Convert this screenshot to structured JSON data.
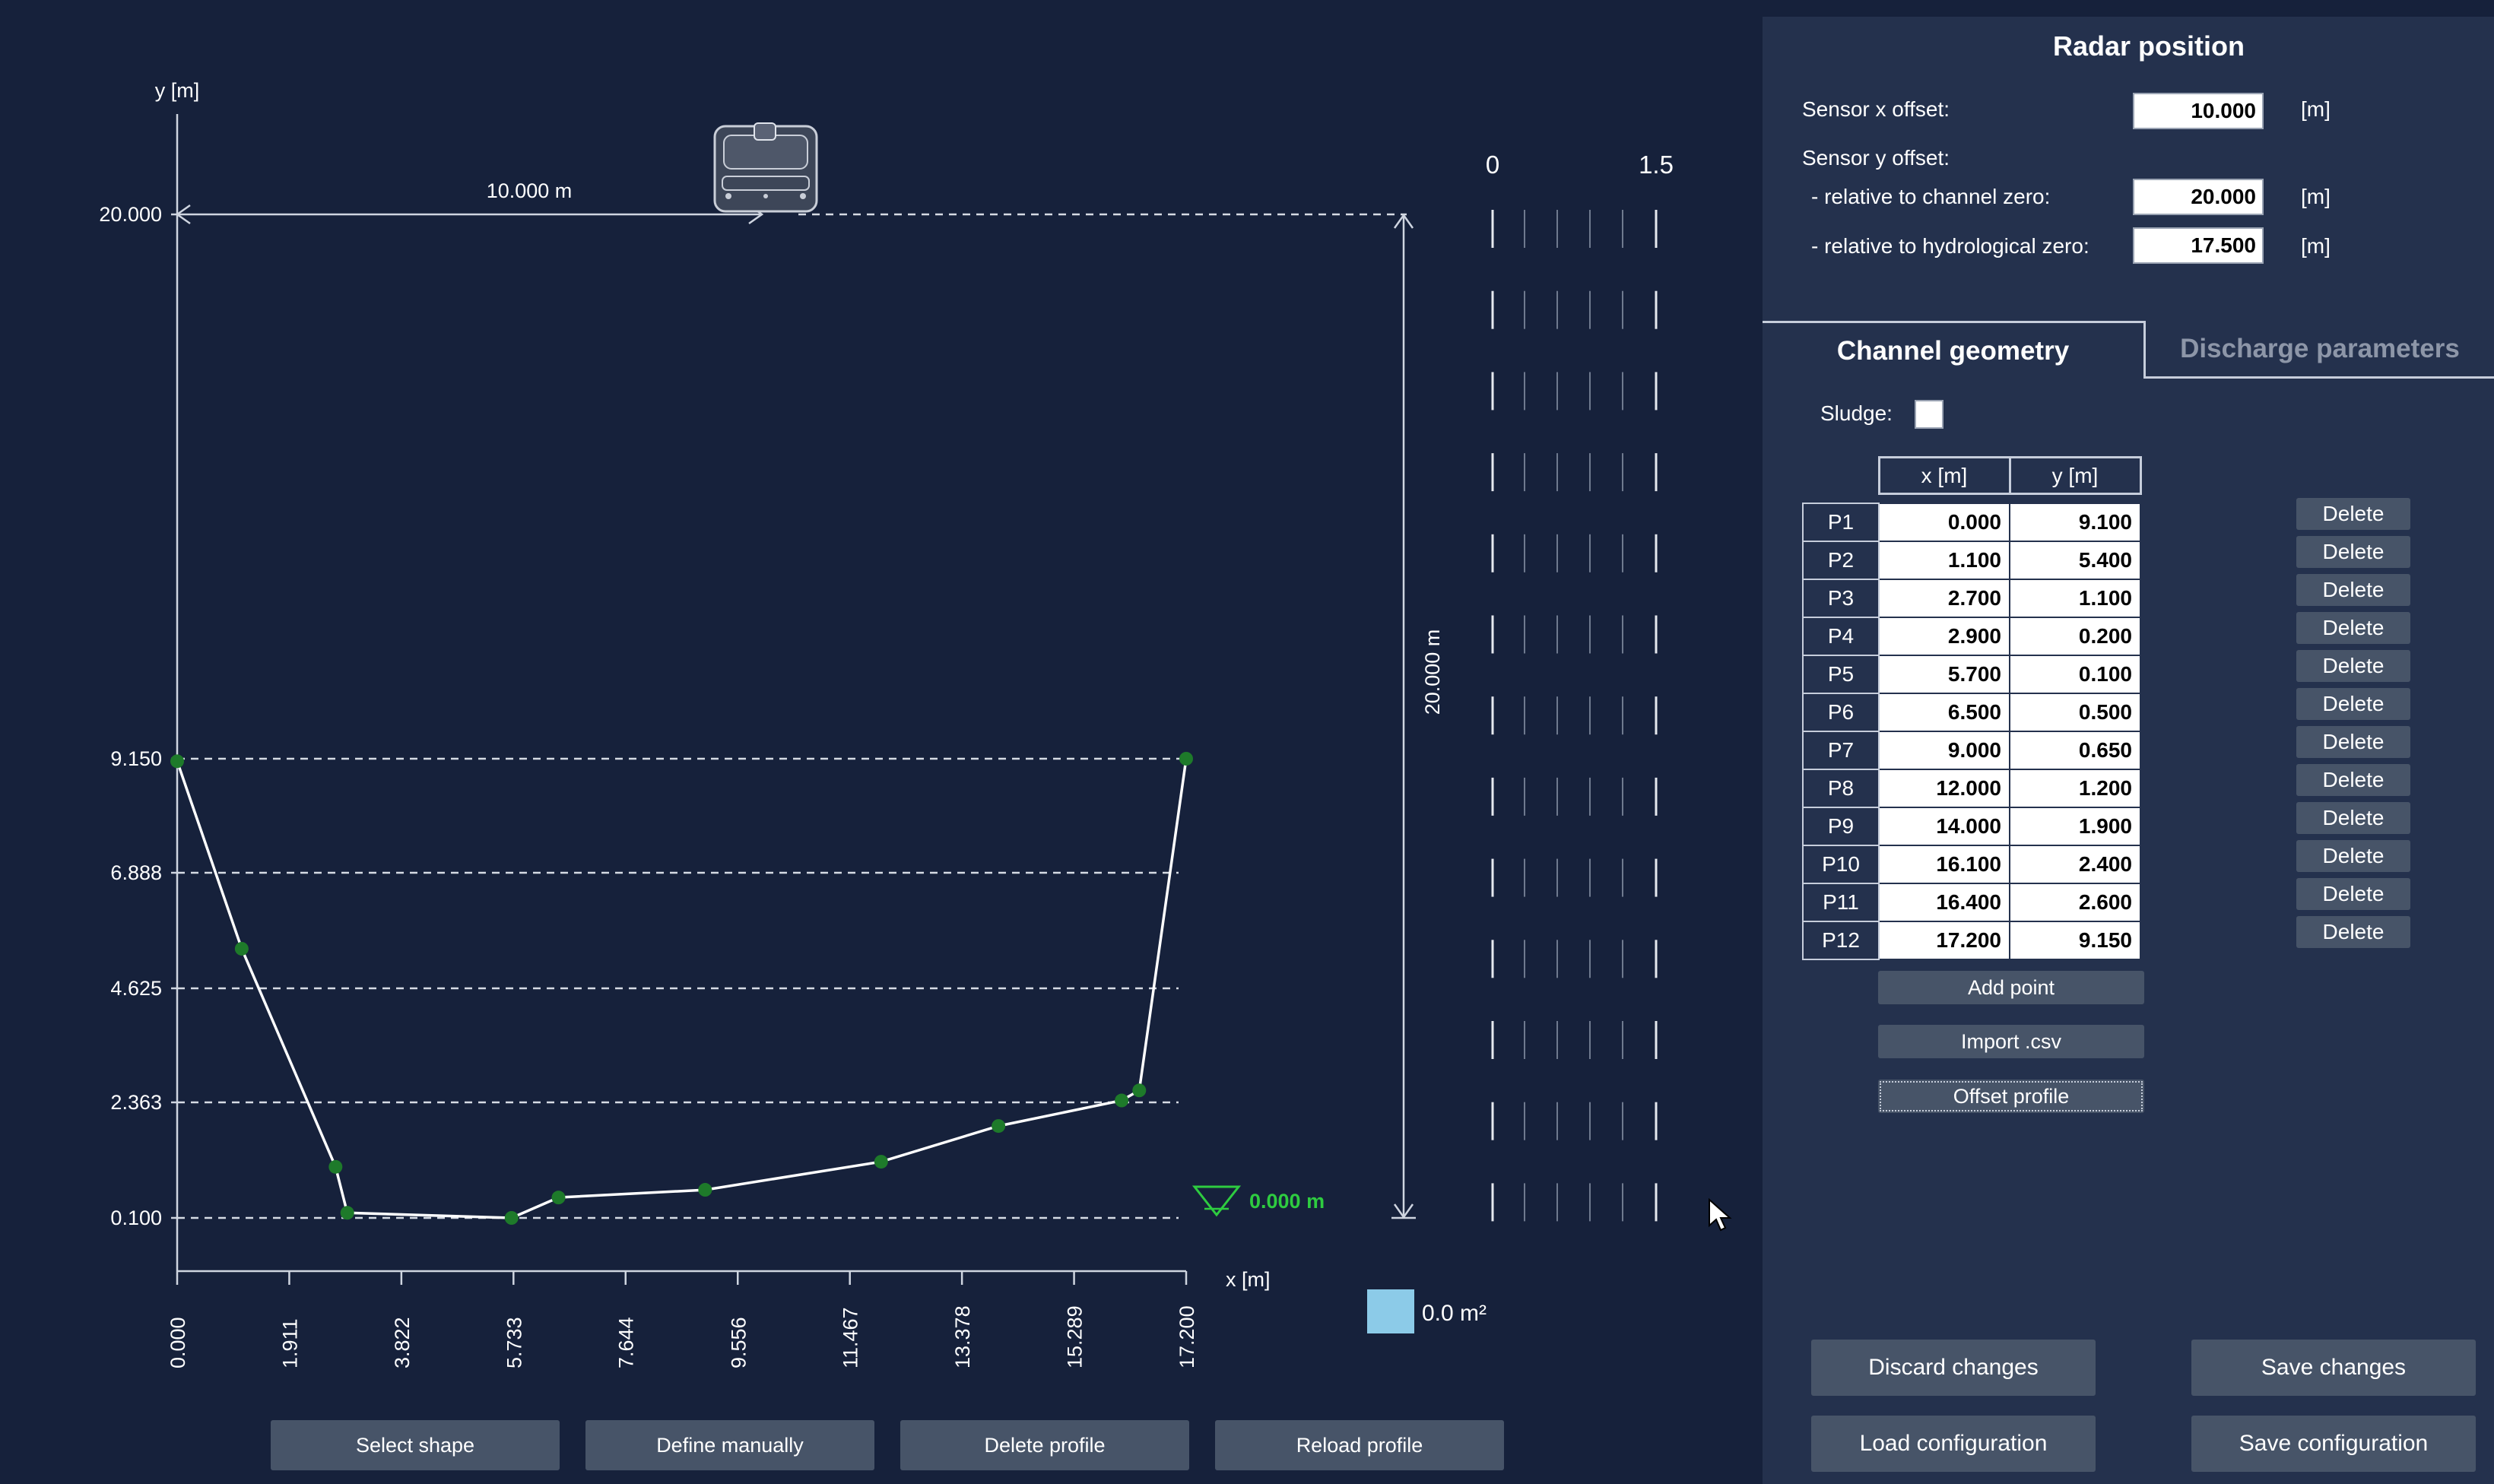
{
  "chart_data": {
    "type": "line",
    "title": "",
    "xlabel": "x [m]",
    "ylabel": "y [m]",
    "xlim": [
      0,
      17.2
    ],
    "ylim": [
      0,
      20
    ],
    "x_ticks": [
      "0.000",
      "1.911",
      "3.822",
      "5.733",
      "7.644",
      "9.556",
      "11.467",
      "13.378",
      "15.289",
      "17.200"
    ],
    "y_ticks": [
      "20.000",
      "9.150",
      "6.888",
      "4.625",
      "2.363",
      "0.100"
    ],
    "series": [
      {
        "name": "",
        "points": [
          {
            "x": 0.0,
            "y": 9.1
          },
          {
            "x": 1.1,
            "y": 5.4
          },
          {
            "x": 2.7,
            "y": 1.1
          },
          {
            "x": 2.9,
            "y": 0.2
          },
          {
            "x": 5.7,
            "y": 0.1
          },
          {
            "x": 6.5,
            "y": 0.5
          },
          {
            "x": 9.0,
            "y": 0.65
          },
          {
            "x": 12.0,
            "y": 1.2
          },
          {
            "x": 14.0,
            "y": 1.9
          },
          {
            "x": 16.1,
            "y": 2.4
          },
          {
            "x": 16.4,
            "y": 2.6
          },
          {
            "x": 17.2,
            "y": 9.15
          }
        ]
      }
    ],
    "sensor_offset_label": "10.000  m",
    "height_label": "20.000 m",
    "water_level_label": "0.000 m",
    "area_label": "0.0 m²",
    "scale_labels": [
      "0",
      "1.5"
    ]
  },
  "colors": {
    "background": "#16213b",
    "panel": "#24314d",
    "point": "#1e7a2a",
    "water_level": "#2ecc40",
    "area_swatch": "#8ccbe8",
    "button": "#475468"
  },
  "left_buttons": {
    "select_shape": "Select shape",
    "define_manually": "Define manually",
    "delete_profile": "Delete profile",
    "reload_profile": "Reload profile"
  },
  "radar": {
    "title": "Radar position",
    "sensor_x_label": "Sensor x offset:",
    "sensor_x_value": "10.000",
    "sensor_y_label": "Sensor y offset:",
    "rel_channel_label": "- relative to channel zero:",
    "rel_channel_value": "20.000",
    "rel_hydro_label": "- relative to hydrological zero:",
    "rel_hydro_value": "17.500",
    "unit": "[m]"
  },
  "tabs": {
    "channel_geometry": "Channel geometry",
    "discharge_parameters": "Discharge parameters"
  },
  "sludge_label": "Sludge:",
  "table": {
    "col_x": "x [m]",
    "col_y": "y [m]",
    "delete_label": "Delete",
    "rows": [
      {
        "label": "P1",
        "x": "0.000",
        "y": "9.100"
      },
      {
        "label": "P2",
        "x": "1.100",
        "y": "5.400"
      },
      {
        "label": "P3",
        "x": "2.700",
        "y": "1.100"
      },
      {
        "label": "P4",
        "x": "2.900",
        "y": "0.200"
      },
      {
        "label": "P5",
        "x": "5.700",
        "y": "0.100"
      },
      {
        "label": "P6",
        "x": "6.500",
        "y": "0.500"
      },
      {
        "label": "P7",
        "x": "9.000",
        "y": "0.650"
      },
      {
        "label": "P8",
        "x": "12.000",
        "y": "1.200"
      },
      {
        "label": "P9",
        "x": "14.000",
        "y": "1.900"
      },
      {
        "label": "P10",
        "x": "16.100",
        "y": "2.400"
      },
      {
        "label": "P11",
        "x": "16.400",
        "y": "2.600"
      },
      {
        "label": "P12",
        "x": "17.200",
        "y": "9.150"
      }
    ]
  },
  "table_buttons": {
    "add_point": "Add point",
    "import_csv": "Import .csv",
    "offset_profile": "Offset profile"
  },
  "bottom_buttons": {
    "discard": "Discard changes",
    "save": "Save changes",
    "load_config": "Load configuration",
    "save_config": "Save configuration"
  }
}
